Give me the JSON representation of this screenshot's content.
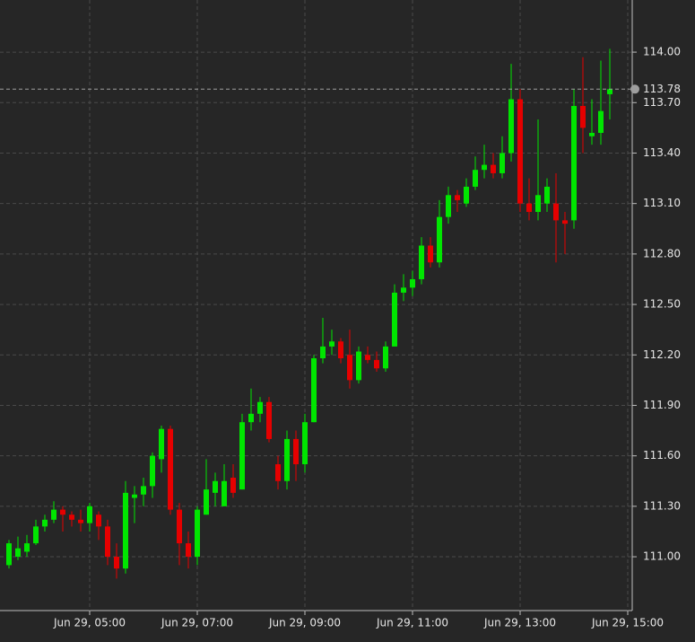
{
  "chart_data": {
    "type": "candlestick",
    "x": [
      210,
      220,
      230,
      240,
      250,
      260,
      270,
      280,
      290,
      300,
      310,
      320,
      330,
      340,
      350,
      360,
      370,
      380,
      390,
      400,
      410,
      420,
      430,
      440,
      450,
      460,
      470,
      480,
      490,
      500,
      510,
      520,
      530,
      540,
      550,
      560,
      570,
      580,
      590,
      600,
      610,
      620,
      630,
      640,
      650,
      660,
      670,
      680,
      690,
      700,
      710,
      720,
      730,
      740,
      750,
      760,
      770,
      780,
      790,
      800,
      810,
      820,
      830,
      840,
      850,
      860,
      870,
      880
    ],
    "open": [
      110.95,
      111.0,
      111.03,
      111.08,
      111.18,
      111.22,
      111.28,
      111.25,
      111.22,
      111.2,
      111.25,
      111.18,
      111.0,
      110.93,
      111.35,
      111.37,
      111.42,
      111.58,
      111.76,
      111.28,
      111.08,
      111.0,
      111.25,
      111.38,
      111.3,
      111.47,
      111.4,
      111.8,
      111.85,
      111.92,
      111.55,
      111.45,
      111.7,
      111.55,
      111.8,
      112.18,
      112.25,
      112.28,
      112.2,
      112.05,
      112.2,
      112.17,
      112.12,
      112.25,
      112.57,
      112.6,
      112.65,
      112.85,
      112.75,
      113.02,
      113.15,
      113.1,
      113.2,
      113.3,
      113.33,
      113.28,
      113.4,
      113.72,
      113.1,
      113.05,
      113.1,
      113.1,
      113.0,
      113.0,
      113.68,
      113.5,
      113.52,
      113.75
    ],
    "high": [
      111.1,
      111.12,
      111.13,
      111.22,
      111.25,
      111.33,
      111.3,
      111.27,
      111.28,
      111.32,
      111.27,
      111.22,
      111.08,
      111.45,
      111.42,
      111.47,
      111.62,
      111.78,
      111.78,
      111.32,
      111.15,
      111.3,
      111.58,
      111.5,
      111.55,
      111.55,
      111.85,
      112.0,
      111.95,
      111.95,
      111.6,
      111.75,
      111.75,
      111.85,
      112.2,
      112.42,
      112.35,
      112.3,
      112.35,
      112.25,
      112.25,
      112.22,
      112.28,
      112.62,
      112.68,
      112.7,
      112.9,
      112.9,
      113.12,
      113.2,
      113.18,
      113.25,
      113.38,
      113.45,
      113.4,
      113.5,
      113.93,
      113.78,
      113.25,
      113.6,
      113.25,
      113.28,
      113.05,
      113.78,
      113.97,
      113.72,
      113.95,
      114.02
    ],
    "low": [
      110.93,
      110.98,
      111.0,
      111.07,
      111.15,
      111.2,
      111.15,
      111.18,
      111.15,
      111.15,
      111.1,
      110.95,
      110.87,
      110.9,
      111.2,
      111.3,
      111.35,
      111.5,
      111.25,
      110.95,
      110.93,
      110.95,
      111.25,
      111.3,
      111.3,
      111.35,
      111.4,
      111.75,
      111.8,
      111.68,
      111.4,
      111.4,
      111.45,
      111.5,
      111.8,
      112.15,
      112.2,
      112.15,
      112.0,
      112.03,
      112.15,
      112.1,
      112.1,
      112.25,
      112.52,
      112.55,
      112.62,
      112.72,
      112.72,
      112.98,
      113.05,
      113.08,
      113.18,
      113.25,
      113.25,
      113.25,
      113.35,
      113.05,
      113.0,
      113.0,
      113.05,
      112.75,
      112.8,
      112.95,
      113.4,
      113.45,
      113.45,
      113.6
    ],
    "close": [
      111.08,
      111.05,
      111.08,
      111.18,
      111.22,
      111.28,
      111.25,
      111.22,
      111.2,
      111.3,
      111.18,
      111.0,
      110.93,
      111.38,
      111.37,
      111.42,
      111.6,
      111.76,
      111.28,
      111.08,
      111.0,
      111.28,
      111.4,
      111.45,
      111.45,
      111.38,
      111.8,
      111.85,
      111.92,
      111.7,
      111.45,
      111.7,
      111.55,
      111.8,
      112.18,
      112.25,
      112.28,
      112.18,
      112.05,
      112.22,
      112.17,
      112.12,
      112.25,
      112.57,
      112.6,
      112.65,
      112.85,
      112.75,
      113.02,
      113.15,
      113.12,
      113.2,
      113.3,
      113.33,
      113.28,
      113.4,
      113.72,
      113.1,
      113.05,
      113.15,
      113.2,
      113.0,
      112.98,
      113.68,
      113.55,
      113.52,
      113.65,
      113.78
    ],
    "up_color": "#00e600",
    "down_color": "#e60000",
    "last_price": 113.78,
    "last_price_color": "#9e9e9e",
    "xlim": [
      200,
      905
    ],
    "xticks": [
      {
        "value": 300,
        "label": "Jun 29, 05:00"
      },
      {
        "value": 420,
        "label": "Jun 29, 07:00"
      },
      {
        "value": 540,
        "label": "Jun 29, 09:00"
      },
      {
        "value": 660,
        "label": "Jun 29, 11:00"
      },
      {
        "value": 780,
        "label": "Jun 29, 13:00"
      },
      {
        "value": 900,
        "label": "Jun 29, 15:00"
      }
    ],
    "ylim": [
      110.68,
      114.31
    ],
    "yticks": [
      {
        "value": 111,
        "label": "111.00"
      },
      {
        "value": 111.3,
        "label": "111.30"
      },
      {
        "value": 111.6,
        "label": "111.60"
      },
      {
        "value": 111.9,
        "label": "111.90"
      },
      {
        "value": 112.2,
        "label": "112.20"
      },
      {
        "value": 112.5,
        "label": "112.50"
      },
      {
        "value": 112.8,
        "label": "112.80"
      },
      {
        "value": 113.1,
        "label": "113.10"
      },
      {
        "value": 113.4,
        "label": "113.40"
      },
      {
        "value": 113.7,
        "label": "113.70"
      },
      {
        "value": 114,
        "label": "114.00"
      }
    ],
    "grid": true
  }
}
